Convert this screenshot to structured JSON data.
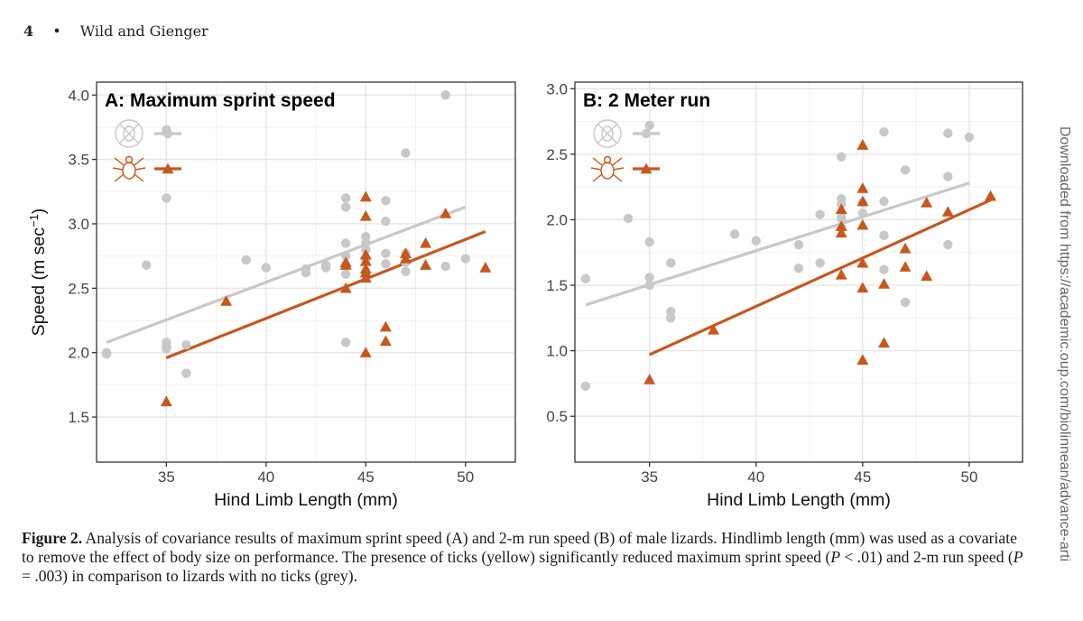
{
  "running_head": {
    "page": "4",
    "authors": "Wild and Gienger"
  },
  "sidebar_text": "Downloaded from https://academic.oup.com/biolinnean/advance-arti",
  "caption": {
    "label": "Figure 2.",
    "part1": " Analysis of covariance results of maximum sprint speed (A) and 2-m run speed (B) of male lizards. Hindlimb length (mm) was used as a covariate to remove the effect of body size on performance. The presence of ticks (yellow) significantly reduced maximum sprint speed (",
    "p1_sym": "P",
    "p1_val": " < .01) and 2-m run speed (",
    "p2_sym": "P",
    "p2_val": " = .003) in comparison to lizards with no ticks (grey)."
  },
  "colors": {
    "no_ticks": "#c8c8c8",
    "ticks": "#c8571e",
    "grid": "#e6e6e6",
    "axis": "#333333"
  },
  "chart_data": [
    {
      "type": "scatter",
      "panel": "A",
      "title": "A: Maximum sprint speed",
      "xlabel": "Hind Limb Length (mm)",
      "ylabel": "Speed (m sec",
      "ylabel_sup": "−1",
      "ylabel_close": ")",
      "xlim": [
        31.5,
        52.5
      ],
      "ylim": [
        1.15,
        4.1
      ],
      "xticks": [
        35,
        40,
        45,
        50
      ],
      "yticks": [
        1.5,
        2.0,
        2.5,
        3.0,
        3.5,
        4.0
      ],
      "ytick_labels": [
        "1.5",
        "2.0",
        "2.5",
        "3.0",
        "3.5",
        "4.0"
      ],
      "legend": {
        "placement": "top-left",
        "entries": [
          "no ticks",
          "ticks"
        ]
      },
      "series": [
        {
          "name": "no ticks",
          "marker": "circle",
          "points": [
            [
              32,
              2.0
            ],
            [
              32,
              1.99
            ],
            [
              34,
              2.68
            ],
            [
              35,
              3.73
            ],
            [
              35,
              3.2
            ],
            [
              35,
              2.08
            ],
            [
              35,
              2.05
            ],
            [
              35,
              2.03
            ],
            [
              36,
              2.06
            ],
            [
              36,
              1.84
            ],
            [
              39,
              2.72
            ],
            [
              40,
              2.66
            ],
            [
              42,
              2.62
            ],
            [
              42,
              2.65
            ],
            [
              43,
              2.66
            ],
            [
              43,
              2.68
            ],
            [
              44,
              3.2
            ],
            [
              44,
              3.13
            ],
            [
              44,
              2.85
            ],
            [
              44,
              2.75
            ],
            [
              44,
              2.68
            ],
            [
              44,
              2.61
            ],
            [
              44,
              2.08
            ],
            [
              45,
              2.9
            ],
            [
              45,
              2.85
            ],
            [
              45,
              2.8
            ],
            [
              45,
              2.72
            ],
            [
              46,
              3.18
            ],
            [
              46,
              3.02
            ],
            [
              46,
              2.77
            ],
            [
              46,
              2.69
            ],
            [
              47,
              3.55
            ],
            [
              47,
              2.77
            ],
            [
              47,
              2.7
            ],
            [
              47,
              2.63
            ],
            [
              49,
              4.0
            ],
            [
              49,
              2.67
            ],
            [
              50,
              2.73
            ]
          ]
        },
        {
          "name": "ticks",
          "marker": "triangle",
          "points": [
            [
              35,
              1.62
            ],
            [
              38,
              2.4
            ],
            [
              44,
              2.7
            ],
            [
              44,
              2.68
            ],
            [
              44,
              2.5
            ],
            [
              45,
              3.21
            ],
            [
              45,
              3.06
            ],
            [
              45,
              2.76
            ],
            [
              45,
              2.71
            ],
            [
              45,
              2.65
            ],
            [
              45,
              2.62
            ],
            [
              45,
              2.58
            ],
            [
              45,
              2.0
            ],
            [
              46,
              2.2
            ],
            [
              46,
              2.09
            ],
            [
              47,
              2.77
            ],
            [
              47,
              2.73
            ],
            [
              48,
              2.85
            ],
            [
              48,
              2.68
            ],
            [
              49,
              3.08
            ],
            [
              51,
              2.66
            ]
          ]
        }
      ],
      "fit_lines": [
        {
          "name": "no ticks",
          "x": [
            32,
            50
          ],
          "y": [
            2.08,
            3.13
          ]
        },
        {
          "name": "ticks",
          "x": [
            35,
            51
          ],
          "y": [
            1.96,
            2.94
          ]
        }
      ]
    },
    {
      "type": "scatter",
      "panel": "B",
      "title": "B: 2 Meter run",
      "xlabel": "Hind Limb Length (mm)",
      "xlim": [
        31.5,
        52.5
      ],
      "ylim": [
        0.15,
        3.05
      ],
      "xticks": [
        35,
        40,
        45,
        50
      ],
      "yticks": [
        0.5,
        1.0,
        1.5,
        2.0,
        2.5,
        3.0
      ],
      "ytick_labels": [
        "0.5",
        "1.0",
        "1.5",
        "2.0",
        "2.5",
        "3.0"
      ],
      "legend": {
        "placement": "top-left",
        "entries": [
          "no ticks",
          "ticks"
        ]
      },
      "series": [
        {
          "name": "no ticks",
          "marker": "circle",
          "points": [
            [
              32,
              1.55
            ],
            [
              32,
              0.73
            ],
            [
              34,
              2.01
            ],
            [
              35,
              2.72
            ],
            [
              35,
              1.83
            ],
            [
              35,
              1.56
            ],
            [
              35,
              1.5
            ],
            [
              36,
              1.67
            ],
            [
              36,
              1.3
            ],
            [
              36,
              1.25
            ],
            [
              39,
              1.89
            ],
            [
              40,
              1.84
            ],
            [
              42,
              1.81
            ],
            [
              42,
              1.63
            ],
            [
              43,
              1.67
            ],
            [
              43,
              2.04
            ],
            [
              44,
              2.48
            ],
            [
              44,
              2.16
            ],
            [
              44,
              2.12
            ],
            [
              44,
              2.05
            ],
            [
              44,
              2.01
            ],
            [
              44,
              1.94
            ],
            [
              45,
              2.13
            ],
            [
              45,
              2.05
            ],
            [
              46,
              2.67
            ],
            [
              46,
              2.14
            ],
            [
              46,
              1.88
            ],
            [
              46,
              1.62
            ],
            [
              47,
              2.38
            ],
            [
              47,
              1.37
            ],
            [
              49,
              2.66
            ],
            [
              49,
              2.33
            ],
            [
              49,
              1.81
            ],
            [
              50,
              2.63
            ]
          ]
        },
        {
          "name": "ticks",
          "marker": "triangle",
          "points": [
            [
              35,
              0.78
            ],
            [
              38,
              1.16
            ],
            [
              44,
              2.08
            ],
            [
              44,
              1.95
            ],
            [
              44,
              1.9
            ],
            [
              44,
              1.58
            ],
            [
              45,
              2.57
            ],
            [
              45,
              2.24
            ],
            [
              45,
              2.14
            ],
            [
              45,
              1.96
            ],
            [
              45,
              1.67
            ],
            [
              45,
              1.48
            ],
            [
              45,
              0.93
            ],
            [
              46,
              1.51
            ],
            [
              46,
              1.06
            ],
            [
              47,
              1.78
            ],
            [
              47,
              1.64
            ],
            [
              48,
              2.13
            ],
            [
              48,
              1.57
            ],
            [
              49,
              2.06
            ],
            [
              51,
              2.18
            ]
          ]
        }
      ],
      "fit_lines": [
        {
          "name": "no ticks",
          "x": [
            32,
            50
          ],
          "y": [
            1.35,
            2.28
          ]
        },
        {
          "name": "ticks",
          "x": [
            35,
            51
          ],
          "y": [
            0.97,
            2.15
          ]
        }
      ]
    }
  ]
}
